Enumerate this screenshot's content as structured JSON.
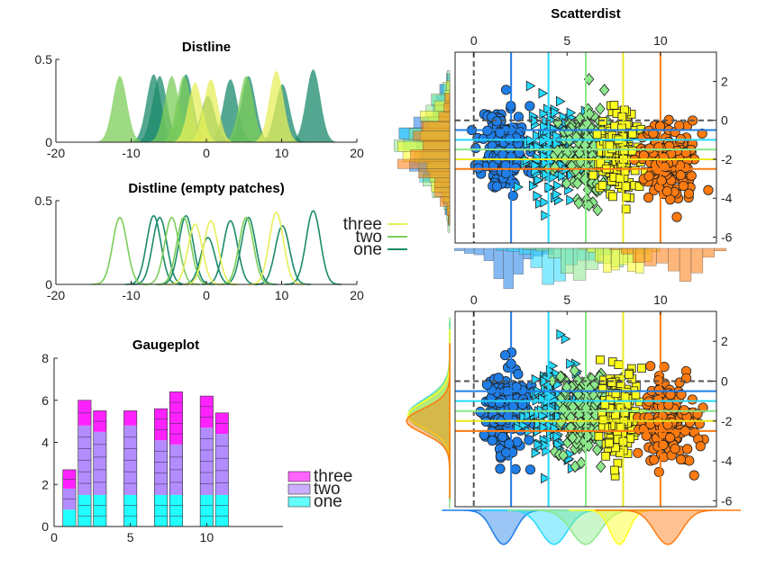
{
  "chart_data": [
    {
      "type": "area",
      "title": "Distline",
      "xlim": [
        -20,
        20
      ],
      "ylim": [
        0,
        0.5
      ],
      "xticks": [
        "-20",
        "-10",
        "0",
        "10",
        "20"
      ],
      "yticks": [
        "0",
        "0.5"
      ],
      "series": [
        {
          "name": "one",
          "color": "#1b8a6b",
          "peaks": [
            [
              -7,
              0.41
            ],
            [
              -6.2,
              0.4
            ],
            [
              -2.7,
              0.41
            ],
            [
              0.2,
              0.28
            ],
            [
              3.2,
              0.38
            ],
            [
              5.6,
              0.4
            ],
            [
              10.1,
              0.35
            ],
            [
              14.2,
              0.44
            ]
          ]
        },
        {
          "name": "two",
          "color": "#7ccd5a",
          "peaks": [
            [
              -11.5,
              0.4
            ],
            [
              -4.6,
              0.4
            ],
            [
              -3,
              0.4
            ],
            [
              5.3,
              0.4
            ]
          ]
        },
        {
          "name": "three",
          "color": "#e6ef5a",
          "peaks": [
            [
              -1.5,
              0.36
            ],
            [
              0.6,
              0.38
            ],
            [
              9.3,
              0.43
            ]
          ]
        }
      ],
      "grid": false
    },
    {
      "type": "line",
      "title": "Distline (empty patches)",
      "xlim": [
        -20,
        20
      ],
      "ylim": [
        0,
        0.5
      ],
      "xticks": [
        "-20",
        "-10",
        "0",
        "10",
        "20"
      ],
      "yticks": [
        "0",
        "0.5"
      ],
      "legend": {
        "entries": [
          "three",
          "two",
          "one"
        ],
        "colors": [
          "#e6ef5a",
          "#7ccd5a",
          "#1b8a6b"
        ],
        "placement": "right"
      }
    },
    {
      "type": "bar",
      "title": "Gaugeplot",
      "xlim": [
        0,
        15
      ],
      "ylim": [
        0,
        8
      ],
      "xticks": [
        "0",
        "5",
        "10"
      ],
      "yticks": [
        "0",
        "2",
        "4",
        "6",
        "8"
      ],
      "categories": [
        1,
        2,
        3,
        5,
        7,
        8,
        10,
        11
      ],
      "series": [
        {
          "name": "one",
          "color": "#22ffff",
          "values": [
            0.8,
            1.5,
            1.5,
            1.5,
            1.5,
            1.5,
            1.5,
            1.5
          ]
        },
        {
          "name": "two",
          "color": "#b38cff",
          "values": [
            1.0,
            3.3,
            3.0,
            3.3,
            2.6,
            2.4,
            3.2,
            2.9
          ]
        },
        {
          "name": "three",
          "color": "#ff22ff",
          "values": [
            0.9,
            1.2,
            1.0,
            0.7,
            1.5,
            2.5,
            1.5,
            1.0
          ]
        }
      ],
      "totals": [
        2.7,
        6.0,
        5.5,
        5.5,
        5.6,
        6.4,
        6.2,
        5.4
      ],
      "legend": {
        "entries": [
          "three",
          "two",
          "one"
        ],
        "placement": "right"
      }
    },
    {
      "type": "scatter",
      "title": "Scatterdist",
      "xlim": [
        -1,
        13
      ],
      "ylim": [
        -6.3,
        3.5
      ],
      "xticks": [
        "0",
        "5",
        "10"
      ],
      "yticks": [
        "2",
        "0",
        "-2",
        "-4",
        "-6"
      ],
      "groups": [
        {
          "marker": "circle",
          "color": "#1f7ee8",
          "x_center": 1.6,
          "y_center": -1.5,
          "x_spread": 1.1,
          "y_spread": 1.5
        },
        {
          "marker": "triangle-right",
          "color": "#25d9ff",
          "x_center": 4.3,
          "y_center": -1.5,
          "x_spread": 1.3,
          "y_spread": 1.5
        },
        {
          "marker": "diamond",
          "color": "#8ce88a",
          "x_center": 6.0,
          "y_center": -1.6,
          "x_spread": 1.4,
          "y_spread": 1.6
        },
        {
          "marker": "square",
          "color": "#ffff1e",
          "x_center": 7.8,
          "y_center": -1.6,
          "x_spread": 0.9,
          "y_spread": 1.4
        },
        {
          "marker": "circle",
          "color": "#ff7a0f",
          "x_center": 10.4,
          "y_center": -2.0,
          "x_spread": 1.3,
          "y_spread": 1.3
        }
      ],
      "vertical_lines": [
        {
          "x": 0,
          "style": "dashed",
          "color": "#555555"
        },
        {
          "x": 2,
          "color": "#1f7ee8"
        },
        {
          "x": 4,
          "color": "#25d9ff"
        },
        {
          "x": 6,
          "color": "#8ce88a"
        },
        {
          "x": 8,
          "color": "#e8e81e"
        },
        {
          "x": 10,
          "color": "#ff7a0f"
        }
      ],
      "horizontal_lines": [
        {
          "y": 0,
          "style": "dashed",
          "color": "#555555"
        },
        {
          "y": -0.5,
          "color": "#1f7ee8"
        },
        {
          "y": -1.0,
          "color": "#25d9ff"
        },
        {
          "y": -1.5,
          "color": "#8ce88a"
        },
        {
          "y": -2.0,
          "color": "#e8e81e"
        },
        {
          "y": -2.5,
          "color": "#ff7a0f"
        }
      ],
      "marginal": "histogram"
    },
    {
      "type": "scatter",
      "title": "",
      "xlim": [
        -1,
        13
      ],
      "ylim": [
        -6.3,
        3.5
      ],
      "xticks": [
        "0",
        "5",
        "10"
      ],
      "yticks": [
        "2",
        "0",
        "-2",
        "-4",
        "-6"
      ],
      "marginal": "density"
    }
  ]
}
